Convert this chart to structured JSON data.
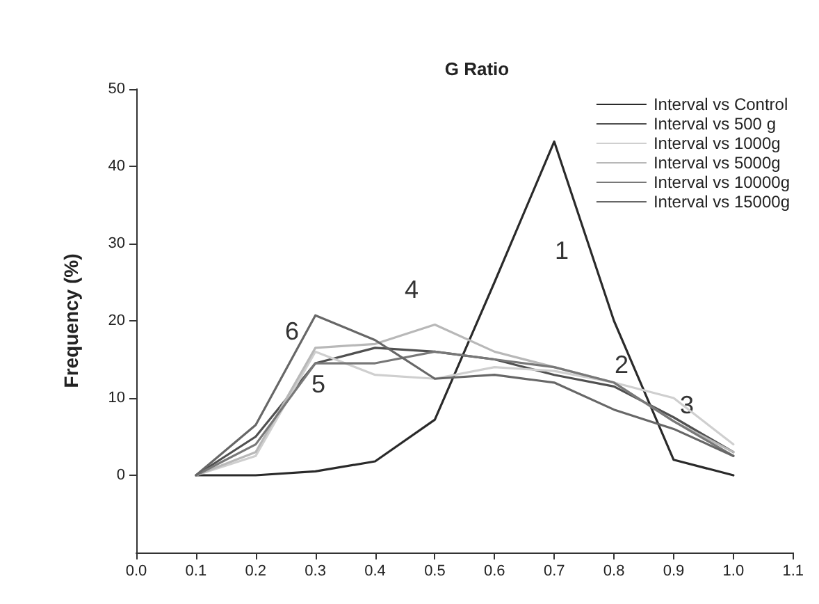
{
  "chart_data": {
    "type": "line",
    "title": "G Ratio",
    "ylabel": "Frequency (%)",
    "x": [
      0.1,
      0.2,
      0.3,
      0.4,
      0.5,
      0.6,
      0.7,
      0.8,
      0.9,
      1.0
    ],
    "series": [
      {
        "name": "Interval vs Control",
        "color": "#2a2a2a",
        "values": [
          0,
          0,
          0.5,
          1.8,
          7.2,
          25,
          43.2,
          20,
          2,
          0
        ]
      },
      {
        "name": "Interval vs 500 g",
        "color": "#505050",
        "values": [
          0,
          5,
          14.5,
          16.5,
          16,
          15,
          13,
          11.5,
          7.5,
          3
        ]
      },
      {
        "name": "Interval vs 1000g",
        "color": "#cfcfcf",
        "values": [
          0,
          2.5,
          16,
          13,
          12.5,
          14,
          13.5,
          12,
          10,
          4
        ]
      },
      {
        "name": "Interval vs 5000g",
        "color": "#b8b8b8",
        "values": [
          0,
          3,
          16.5,
          17,
          19.5,
          16,
          14,
          12,
          7,
          3
        ]
      },
      {
        "name": "Interval vs 10000g",
        "color": "#787878",
        "values": [
          0,
          4,
          14.5,
          14.5,
          16,
          15,
          14,
          12,
          7,
          2.5
        ]
      },
      {
        "name": "Interval vs 15000g",
        "color": "#676767",
        "values": [
          0,
          6.5,
          20.7,
          17.5,
          12.5,
          13,
          12,
          8.5,
          6,
          2.5
        ]
      }
    ],
    "annotations": [
      "1",
      "2",
      "3",
      "4",
      "5",
      "6"
    ],
    "xlim": [
      0,
      1.1
    ],
    "xticks": [
      {
        "value": 0,
        "label": "0.0"
      },
      {
        "value": 0.1,
        "label": "0.1"
      },
      {
        "value": 0.2,
        "label": "0.2"
      },
      {
        "value": 0.3,
        "label": "0.3"
      },
      {
        "value": 0.4,
        "label": "0.4"
      },
      {
        "value": 0.5,
        "label": "0.5"
      },
      {
        "value": 0.6,
        "label": "0.6"
      },
      {
        "value": 0.7,
        "label": "0.7"
      },
      {
        "value": 0.8,
        "label": "0.8"
      },
      {
        "value": 0.9,
        "label": "0.9"
      },
      {
        "value": 1.0,
        "label": "1.0"
      },
      {
        "value": 1.1,
        "label": "1.1"
      }
    ],
    "ylim": [
      -10,
      50
    ],
    "yticks": [
      0,
      10,
      20,
      30,
      40,
      50
    ],
    "grid": false,
    "legend": "top right",
    "marker": "none",
    "line_style": "solid"
  }
}
